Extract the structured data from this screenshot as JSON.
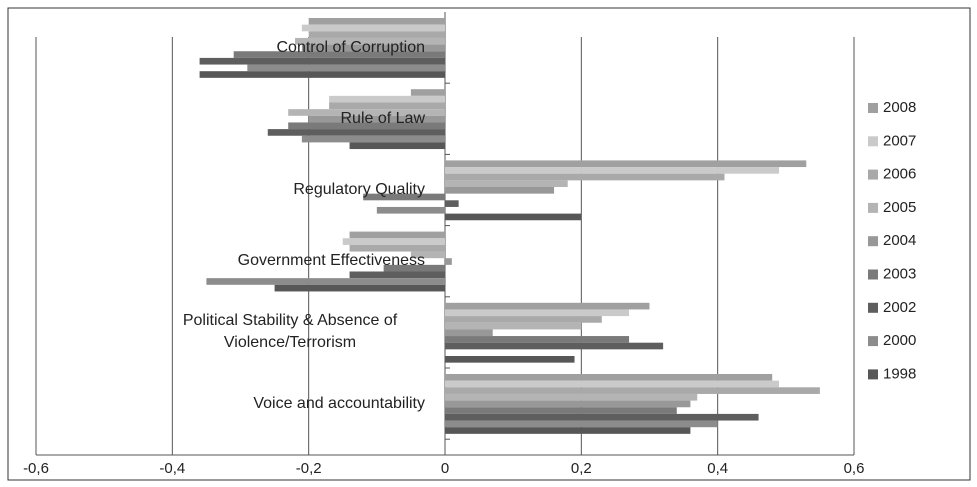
{
  "chart_data": {
    "type": "hbar",
    "categories": [
      "Control of Corruption",
      "Rule of Law",
      "Regulatory Quality",
      "Government Effectiveness",
      "Political Stability & Absence of Violence/Terrorism",
      "Voice and accountability"
    ],
    "series": [
      {
        "name": "2008",
        "color": "#a0a0a0",
        "values": [
          -0.2,
          -0.05,
          0.53,
          -0.14,
          0.3,
          0.48
        ]
      },
      {
        "name": "2007",
        "color": "#cacaca",
        "values": [
          -0.21,
          -0.17,
          0.49,
          -0.15,
          0.27,
          0.49
        ]
      },
      {
        "name": "2006",
        "color": "#a9a9a9",
        "values": [
          -0.2,
          -0.17,
          0.41,
          -0.14,
          0.23,
          0.55
        ]
      },
      {
        "name": "2005",
        "color": "#b4b4b4",
        "values": [
          -0.22,
          -0.23,
          0.18,
          -0.05,
          0.2,
          0.37
        ]
      },
      {
        "name": "2004",
        "color": "#989898",
        "values": [
          -0.21,
          -0.2,
          0.16,
          0.01,
          0.07,
          0.36
        ]
      },
      {
        "name": "2003",
        "color": "#7a7a7a",
        "values": [
          -0.31,
          -0.23,
          -0.12,
          -0.09,
          0.27,
          0.34
        ]
      },
      {
        "name": "2002",
        "color": "#5e5e5e",
        "values": [
          -0.36,
          -0.26,
          0.02,
          -0.14,
          0.32,
          0.46
        ]
      },
      {
        "name": "2000",
        "color": "#8c8c8c",
        "values": [
          -0.29,
          -0.21,
          -0.1,
          -0.35,
          0,
          0.4
        ]
      },
      {
        "name": "1998",
        "color": "#575757",
        "values": [
          -0.36,
          -0.14,
          0.2,
          -0.25,
          0.19,
          0.36
        ]
      }
    ],
    "xlim": [
      -0.6,
      0.6
    ],
    "xticks": [
      {
        "value": -0.6,
        "label": "-0,6"
      },
      {
        "value": -0.4,
        "label": "-0,4"
      },
      {
        "value": -0.2,
        "label": "-0,2"
      },
      0,
      {
        "value": 0.2,
        "label": "0,2"
      },
      {
        "value": 0.4,
        "label": "0,4"
      },
      {
        "value": 0.6,
        "label": "0,6"
      }
    ],
    "grid": true,
    "legend": "right"
  }
}
